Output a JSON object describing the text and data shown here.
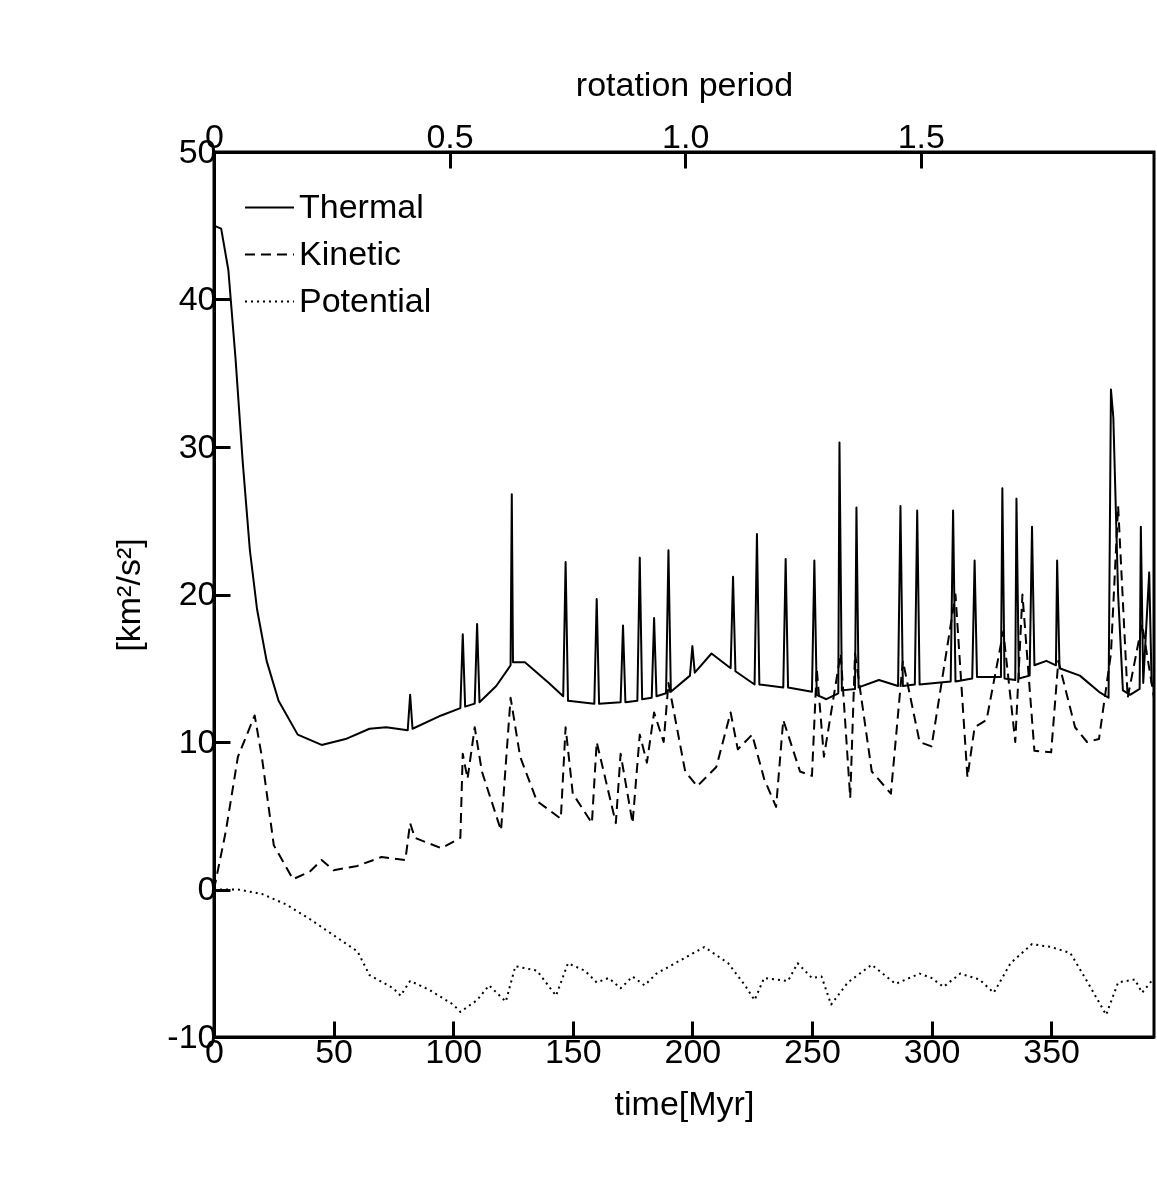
{
  "chart_data": {
    "type": "line",
    "xlabel": "time[Myr]",
    "ylabel": "[km²/s²]",
    "x2label": "rotation period",
    "xlim": [
      0,
      393
    ],
    "xticks": [
      0,
      50,
      100,
      150,
      200,
      250,
      300,
      350
    ],
    "x2lim": [
      0,
      1.995
    ],
    "x2ticks": [
      0,
      0.5,
      {
        "value": 1,
        "label": "1.0"
      },
      1.5
    ],
    "ylim": [
      -10,
      50
    ],
    "yticks": [
      -10,
      0,
      10,
      20,
      30,
      40,
      50
    ],
    "grid": false,
    "legend": "top left",
    "marker": "none",
    "series": [
      {
        "name": "Thermal",
        "color": "#000000",
        "line_style": "solid",
        "x": [
          0,
          3,
          6,
          9,
          12,
          15,
          18,
          22,
          27,
          35,
          45,
          55,
          65,
          72,
          81,
          82,
          83,
          95,
          103,
          104,
          105,
          109,
          110,
          111,
          118,
          124,
          124.5,
          125,
          130,
          140,
          146,
          147,
          148,
          159,
          160,
          161,
          170,
          171,
          172,
          177,
          178,
          179,
          183,
          184,
          185,
          189,
          190,
          191,
          199,
          200,
          201,
          208,
          216,
          217,
          218,
          226,
          227,
          228,
          238,
          239,
          240,
          250,
          251,
          252,
          256,
          261,
          261.5,
          262.5,
          268,
          268.6,
          269.5,
          278,
          286,
          287,
          288,
          293,
          294,
          295,
          308,
          309,
          310,
          317,
          318,
          319,
          329,
          329.6,
          330.5,
          335,
          335.5,
          336.5,
          341,
          342,
          343,
          348,
          352,
          352.5,
          353.5,
          362,
          370,
          374,
          375,
          376,
          378,
          380,
          383,
          387,
          387.5,
          388.5,
          391,
          392,
          393
        ],
        "values": [
          45,
          44.8,
          42,
          36,
          29,
          23,
          19,
          15.5,
          12.8,
          10.5,
          9.8,
          10.2,
          10.9,
          11,
          10.8,
          13.2,
          10.9,
          11.8,
          12.3,
          17.3,
          12.4,
          12.6,
          18,
          12.7,
          13.8,
          15.2,
          26.8,
          15.4,
          15.4,
          14,
          13.1,
          22.2,
          12.8,
          12.6,
          19.7,
          12.6,
          12.7,
          17.9,
          12.7,
          12.8,
          22.5,
          12.9,
          13,
          18.4,
          13.1,
          13.3,
          23,
          13.4,
          14.5,
          16.5,
          14.7,
          16,
          15,
          21.2,
          14.8,
          13.9,
          24.1,
          13.9,
          13.7,
          22.4,
          13.7,
          13.4,
          22.3,
          13.2,
          12.9,
          13.3,
          30.3,
          13.5,
          13.6,
          25.9,
          13.7,
          14.2,
          13.8,
          26,
          13.8,
          13.9,
          25.7,
          13.9,
          14.1,
          25.7,
          14.1,
          14.3,
          22.3,
          14.4,
          14.4,
          27.2,
          14.3,
          14.2,
          26.5,
          14.3,
          14.5,
          24.6,
          15.2,
          15.5,
          15.2,
          22.3,
          15,
          14.5,
          13.4,
          13,
          33.9,
          32,
          20,
          13.5,
          13.2,
          13.6,
          24.6,
          14,
          21.5,
          14,
          13.7
        ]
      },
      {
        "name": "Kinetic",
        "color": "#000000",
        "line_style": "dashed",
        "x": [
          0,
          5,
          10,
          17,
          20,
          25,
          33,
          40,
          45,
          50,
          60,
          70,
          80,
          82,
          84,
          95,
          103,
          104,
          106,
          109,
          112,
          120,
          124,
          128,
          135,
          145,
          147,
          150,
          158,
          160,
          168,
          170,
          175,
          178,
          181,
          184,
          188,
          190,
          197,
          202,
          210,
          216,
          219,
          225,
          230,
          235,
          238,
          245,
          250,
          252,
          255,
          262,
          266,
          268,
          275,
          283,
          288,
          295,
          300,
          310,
          315,
          318,
          323,
          330,
          335,
          338,
          343,
          350,
          353,
          360,
          365,
          370,
          375,
          378,
          382,
          388,
          393
        ],
        "values": [
          0,
          4,
          9,
          11.8,
          9,
          3,
          0.7,
          1.2,
          2,
          1.3,
          1.6,
          2.2,
          2,
          4.5,
          3.5,
          2.8,
          3.5,
          9.2,
          7.5,
          11,
          8,
          4,
          13,
          9,
          6,
          4.8,
          11,
          6.5,
          4.5,
          10,
          4.5,
          9.2,
          4.5,
          10.5,
          8.6,
          12,
          10,
          14,
          8,
          7,
          8.3,
          12,
          9.5,
          10.5,
          7.5,
          5.6,
          11.5,
          8,
          7.7,
          15,
          9,
          16,
          6.2,
          16,
          8,
          6.5,
          15.5,
          10,
          9.7,
          20,
          7.6,
          11,
          11.5,
          17.5,
          10,
          20,
          9.4,
          9.3,
          15.5,
          11,
          10,
          10.2,
          16,
          26,
          13,
          18,
          13
        ]
      },
      {
        "name": "Potential",
        "color": "#000000",
        "line_style": "dotted",
        "x": [
          0,
          10,
          20,
          30,
          40,
          50,
          60,
          65,
          75,
          78,
          82,
          90,
          100,
          103,
          110,
          115,
          122,
          126,
          135,
          143,
          148,
          155,
          160,
          165,
          170,
          175,
          180,
          185,
          195,
          205,
          215,
          222,
          226,
          230,
          240,
          244,
          250,
          254,
          258,
          265,
          275,
          285,
          295,
          300,
          305,
          312,
          320,
          326,
          333,
          342,
          350,
          358,
          366,
          373,
          378,
          385,
          388,
          393
        ],
        "values": [
          0,
          0,
          -0.3,
          -1,
          -2,
          -3.1,
          -4.2,
          -5.8,
          -6.7,
          -7.2,
          -6.2,
          -6.8,
          -7.8,
          -8.3,
          -7.5,
          -6.5,
          -7.6,
          -5.2,
          -5.5,
          -7.2,
          -5,
          -5.5,
          -6.3,
          -6,
          -6.7,
          -5.9,
          -6.5,
          -5.7,
          -4.8,
          -3.9,
          -5,
          -6.5,
          -7.5,
          -6,
          -6.2,
          -5,
          -6,
          -5.9,
          -7.8,
          -6.3,
          -5.1,
          -6.4,
          -5.7,
          -6,
          -6.6,
          -5.7,
          -6.1,
          -7,
          -5,
          -3.7,
          -3.9,
          -4.3,
          -6.5,
          -8.5,
          -6.3,
          -6.1,
          -7,
          -6
        ]
      }
    ]
  }
}
